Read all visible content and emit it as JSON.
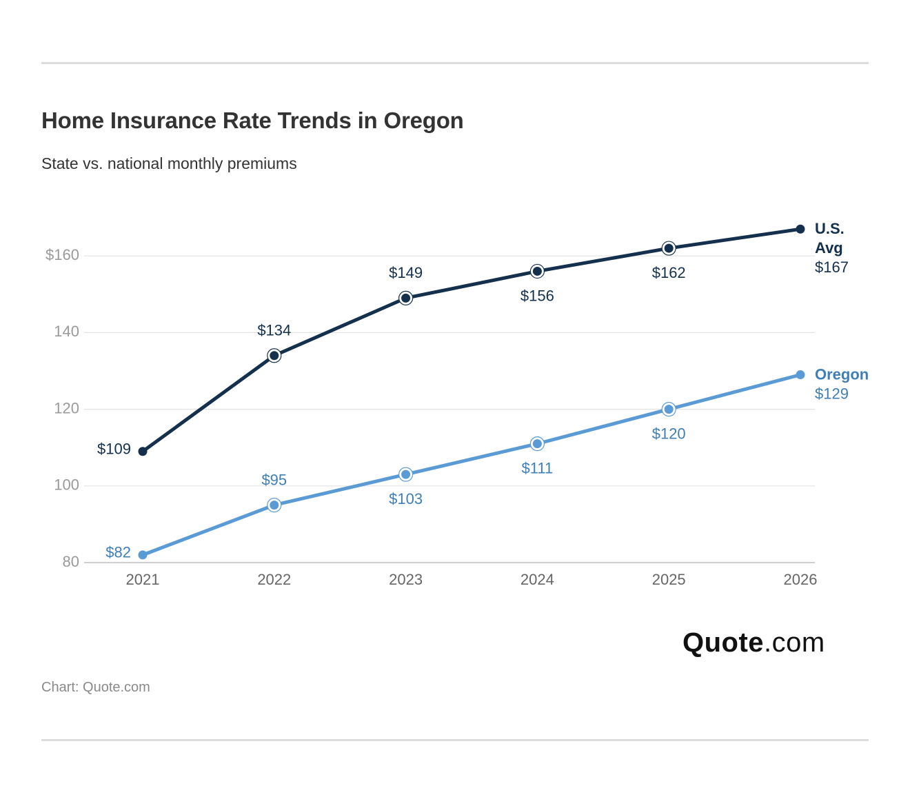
{
  "title": "Home Insurance Rate Trends in Oregon",
  "subtitle": "State vs. national monthly premiums",
  "source": "Chart: Quote.com",
  "logo": {
    "brand": "Quote",
    "suffix": ".com"
  },
  "colors": {
    "us_avg": "#14304d",
    "oregon": "#5b9bd5",
    "oregon_text": "#3f7fb8",
    "grid": "#e3e3e3",
    "axis_text": "#9a9a9a"
  },
  "chart_data": {
    "type": "line",
    "x": [
      "2021",
      "2022",
      "2023",
      "2024",
      "2025",
      "2026"
    ],
    "ylim": [
      80,
      167
    ],
    "yticks": [
      80,
      100,
      120,
      140,
      160
    ],
    "ytick_labels": [
      "80",
      "100",
      "120",
      "140",
      "$160"
    ],
    "grid": true,
    "series": [
      {
        "key": "us",
        "name_lines": [
          "U.S.",
          "Avg"
        ],
        "values": [
          109,
          134,
          149,
          156,
          162,
          167
        ],
        "labels": [
          "$109",
          "$134",
          "$149",
          "$156",
          "$162",
          "$167"
        ]
      },
      {
        "key": "oregon",
        "name_lines": [
          "Oregon"
        ],
        "values": [
          82,
          95,
          103,
          111,
          120,
          129
        ],
        "labels": [
          "$82",
          "$95",
          "$103",
          "$111",
          "$120",
          "$129"
        ]
      }
    ]
  }
}
